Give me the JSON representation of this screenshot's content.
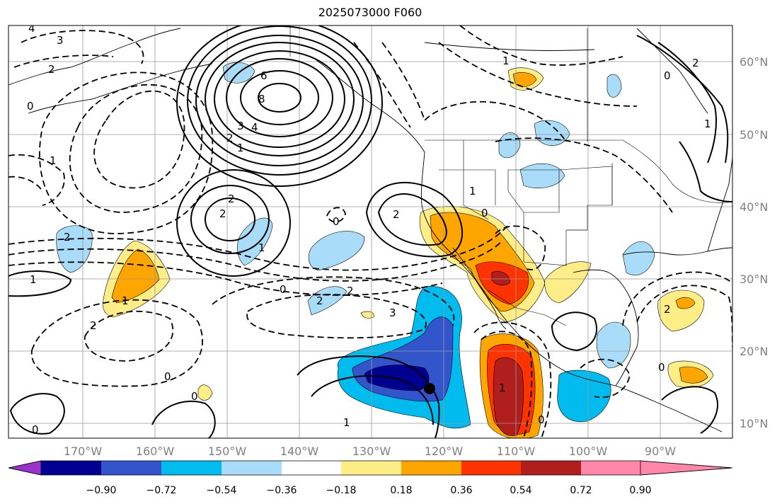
{
  "title": "2025073000 F060",
  "latitudes": [
    "60°N",
    "50°N",
    "40°N",
    "30°N",
    "20°N",
    "10°N"
  ],
  "longitudes": [
    "170°W",
    "160°W",
    "150°W",
    "140°W",
    "130°W",
    "120°W",
    "110°W",
    "100°W",
    "90°W"
  ],
  "colorbar": {
    "colors": [
      "#9933cc",
      "#000090",
      "#3355cc",
      "#00bbee",
      "#a8dcf8",
      "#ffffff",
      "#ffee88",
      "#ffa500",
      "#ff3300",
      "#b01e1e",
      "#ff88aa"
    ],
    "tick_labels": [
      "−0.90",
      "−0.72",
      "−0.54",
      "−0.36",
      "−0.18",
      "0.18",
      "0.36",
      "0.54",
      "0.72",
      "0.90"
    ]
  },
  "contour_labels": [
    "4",
    "3",
    "2",
    "0",
    "1",
    "6",
    "8",
    "4",
    "3",
    "2",
    "1",
    "2",
    "2",
    "1",
    "0",
    "2",
    "1",
    "0",
    "2",
    "1",
    "2",
    "3",
    "0",
    "2",
    "1",
    "2",
    "0",
    "0",
    "1",
    "1",
    "0",
    "2",
    "0",
    "2",
    "0",
    "1",
    "1"
  ],
  "marker": {
    "name": "black-dot"
  }
}
